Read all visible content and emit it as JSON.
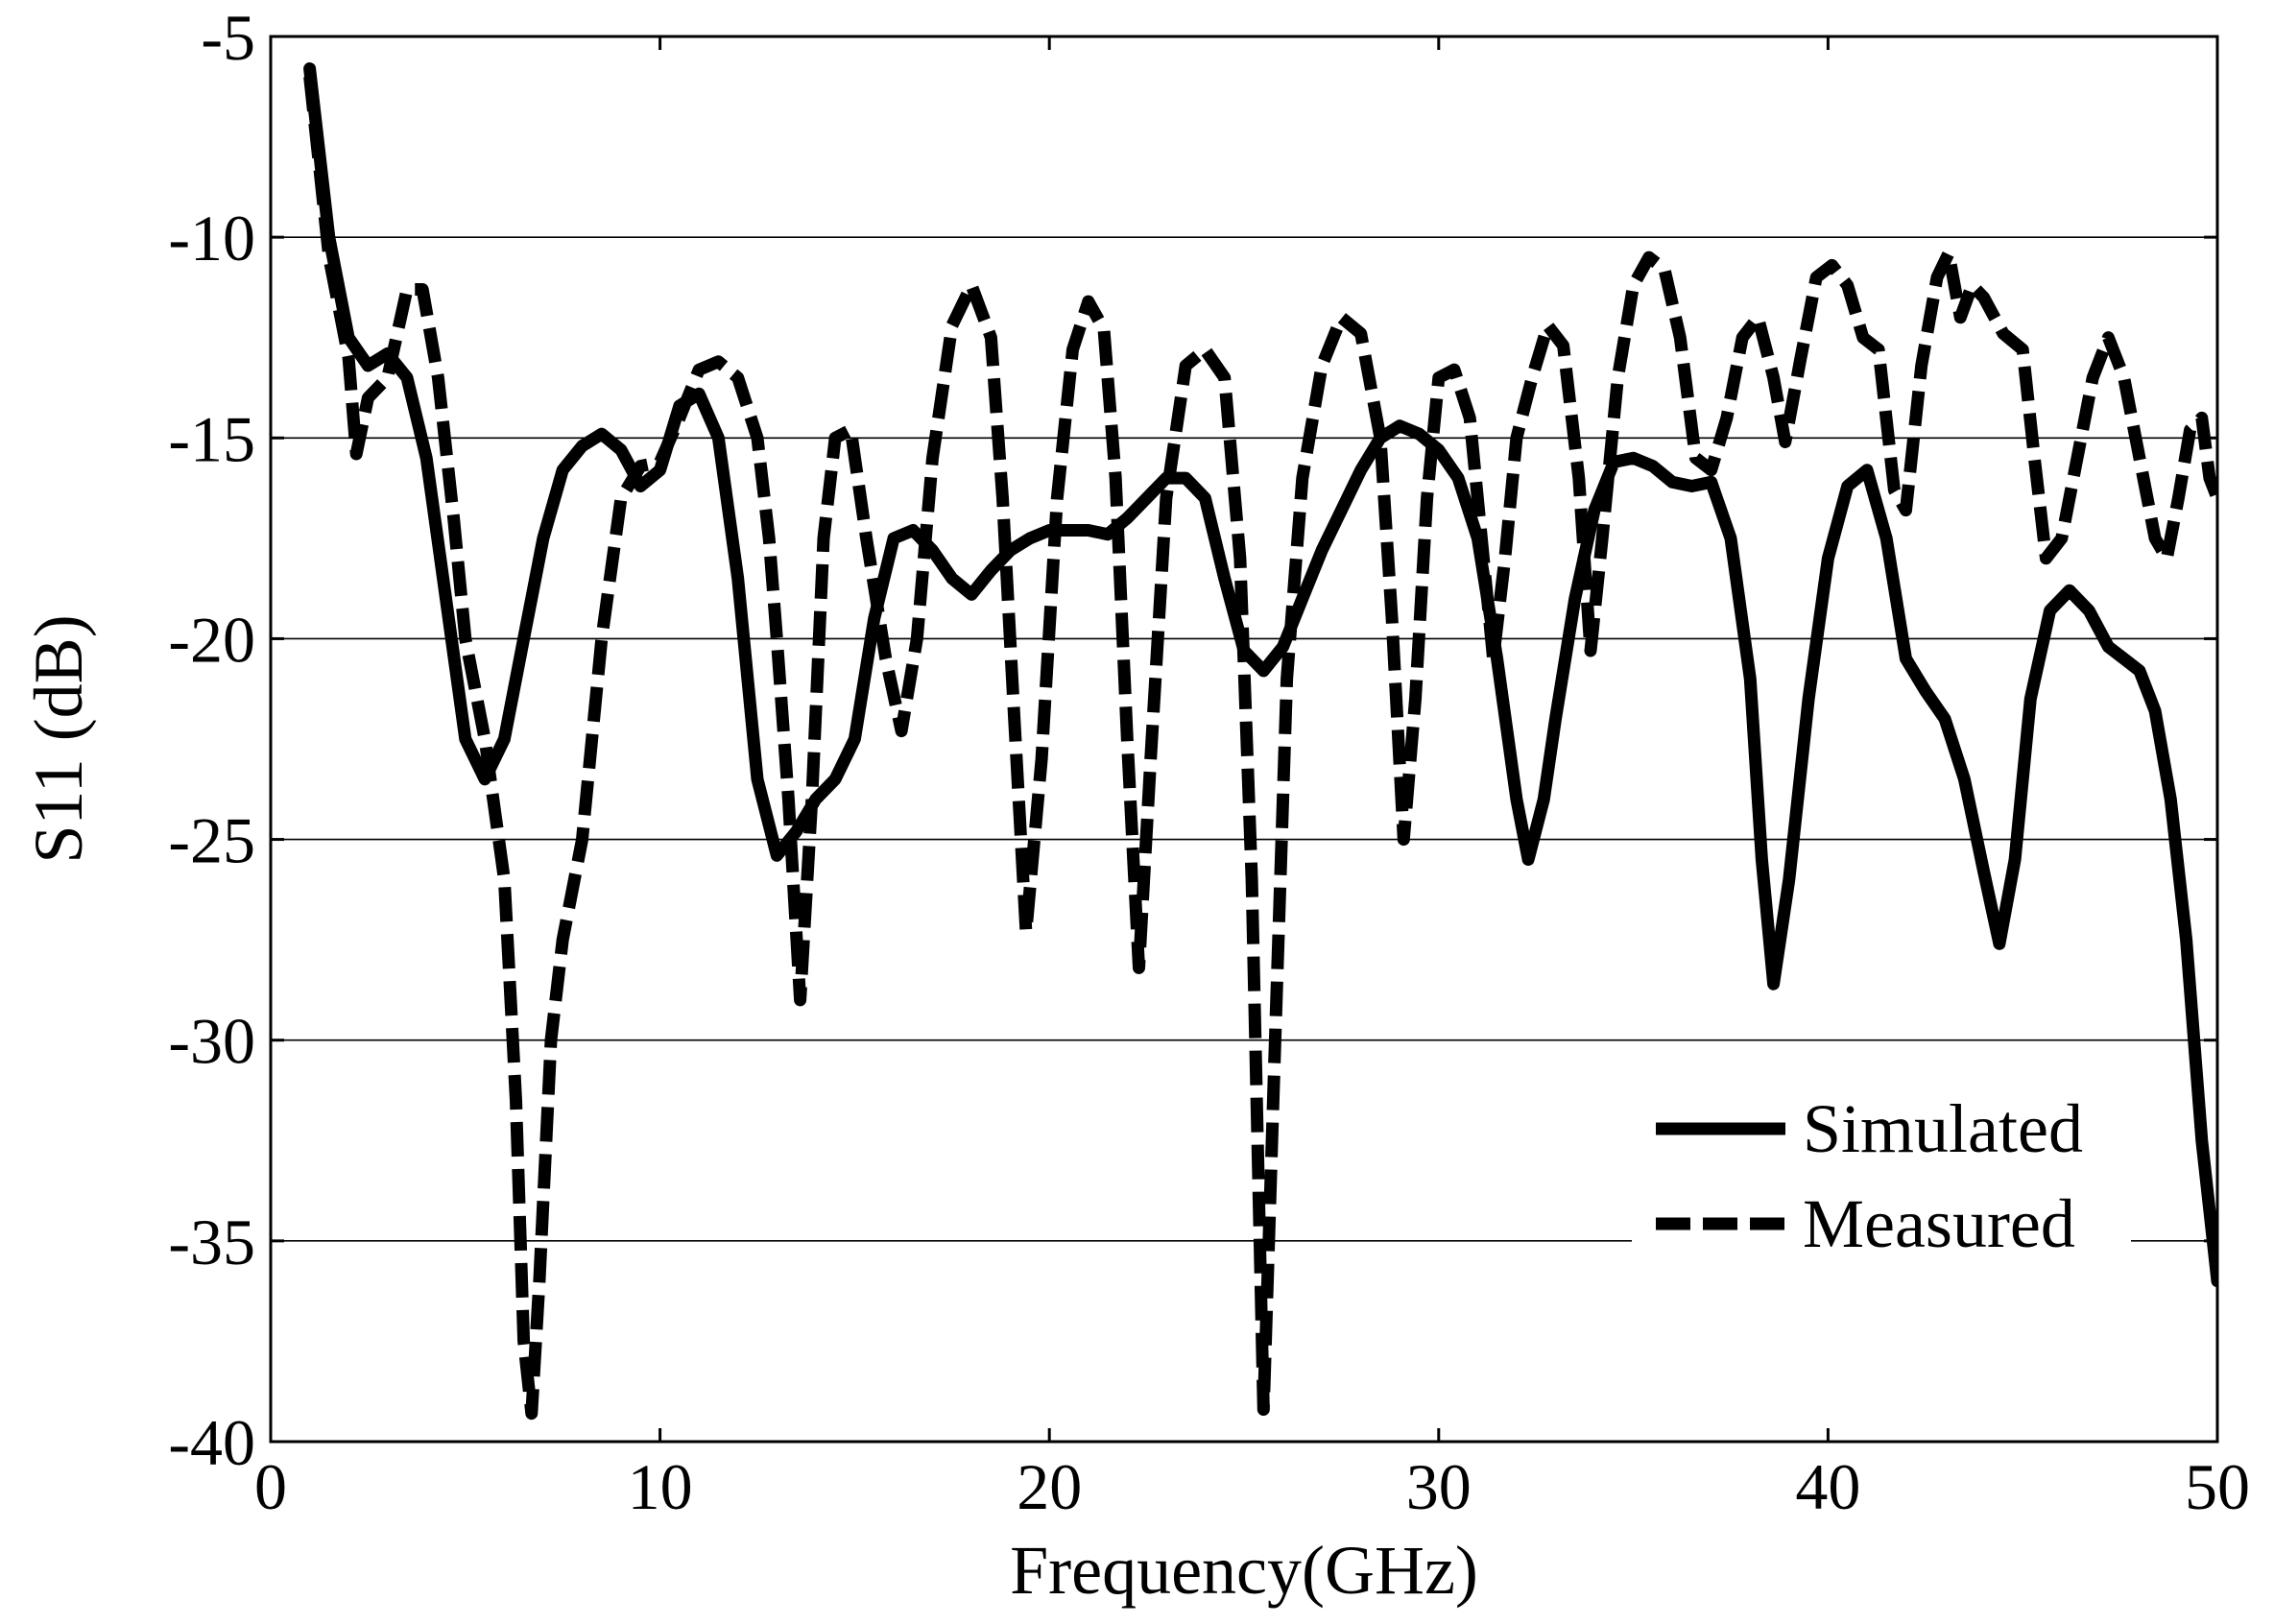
{
  "chart_data": {
    "type": "line",
    "title": "",
    "xlabel": "Frequency(GHz)",
    "ylabel": "S11 (dB)",
    "xlim": [
      0,
      50
    ],
    "ylim": [
      -40,
      -5
    ],
    "xticks": [
      0,
      10,
      20,
      30,
      40,
      50
    ],
    "yticks": [
      -40,
      -35,
      -30,
      -25,
      -20,
      -15,
      -10,
      -5
    ],
    "xtick_labels": [
      "0",
      "10",
      "20",
      "30",
      "40",
      "50"
    ],
    "ytick_labels": [
      "-40",
      "-35",
      "-30",
      "-25",
      "-20",
      "-15",
      "-10",
      "-5"
    ],
    "grid": "horizontal",
    "legend_position": "lower-right",
    "series": [
      {
        "name": "Simulated",
        "style": "solid",
        "color": "#000000",
        "points": [
          [
            1.0,
            -5.8
          ],
          [
            1.5,
            -10.0
          ],
          [
            2.0,
            -12.5
          ],
          [
            2.5,
            -13.2
          ],
          [
            3.0,
            -12.9
          ],
          [
            3.5,
            -13.5
          ],
          [
            4.0,
            -15.5
          ],
          [
            4.5,
            -19.0
          ],
          [
            5.0,
            -22.5
          ],
          [
            5.5,
            -23.5
          ],
          [
            6.0,
            -22.5
          ],
          [
            6.5,
            -20.0
          ],
          [
            7.0,
            -17.5
          ],
          [
            7.5,
            -15.8
          ],
          [
            8.0,
            -15.2
          ],
          [
            8.5,
            -14.9
          ],
          [
            9.0,
            -15.3
          ],
          [
            9.5,
            -16.2
          ],
          [
            10.0,
            -15.8
          ],
          [
            10.5,
            -14.2
          ],
          [
            11.0,
            -13.9
          ],
          [
            11.5,
            -15.0
          ],
          [
            12.0,
            -18.5
          ],
          [
            12.5,
            -23.5
          ],
          [
            13.0,
            -25.4
          ],
          [
            13.5,
            -24.8
          ],
          [
            14.0,
            -24.0
          ],
          [
            14.5,
            -23.5
          ],
          [
            15.0,
            -22.5
          ],
          [
            15.5,
            -19.5
          ],
          [
            16.0,
            -17.5
          ],
          [
            16.5,
            -17.3
          ],
          [
            17.0,
            -17.8
          ],
          [
            17.5,
            -18.5
          ],
          [
            18.0,
            -18.9
          ],
          [
            18.5,
            -18.3
          ],
          [
            19.0,
            -17.8
          ],
          [
            19.5,
            -17.5
          ],
          [
            20.0,
            -17.3
          ],
          [
            21.0,
            -17.3
          ],
          [
            21.5,
            -17.4
          ],
          [
            22.0,
            -17.0
          ],
          [
            22.5,
            -16.5
          ],
          [
            23.0,
            -16.0
          ],
          [
            23.5,
            -16.0
          ],
          [
            24.0,
            -16.5
          ],
          [
            24.5,
            -18.5
          ],
          [
            25.0,
            -20.3
          ],
          [
            25.5,
            -20.8
          ],
          [
            26.0,
            -20.2
          ],
          [
            26.5,
            -19.0
          ],
          [
            27.0,
            -17.8
          ],
          [
            27.5,
            -16.8
          ],
          [
            28.0,
            -15.8
          ],
          [
            28.5,
            -15.0
          ],
          [
            29.0,
            -14.7
          ],
          [
            29.5,
            -14.9
          ],
          [
            30.0,
            -15.3
          ],
          [
            30.5,
            -16.0
          ],
          [
            31.0,
            -17.5
          ],
          [
            31.5,
            -20.5
          ],
          [
            32.0,
            -24.0
          ],
          [
            32.3,
            -25.5
          ],
          [
            32.7,
            -24.0
          ],
          [
            33.0,
            -22.0
          ],
          [
            33.5,
            -19.0
          ],
          [
            34.0,
            -16.8
          ],
          [
            34.5,
            -15.6
          ],
          [
            35.0,
            -15.5
          ],
          [
            35.5,
            -15.7
          ],
          [
            36.0,
            -16.1
          ],
          [
            36.5,
            -16.2
          ],
          [
            37.0,
            -16.1
          ],
          [
            37.5,
            -17.5
          ],
          [
            38.0,
            -21.0
          ],
          [
            38.3,
            -25.5
          ],
          [
            38.6,
            -28.6
          ],
          [
            39.0,
            -26.0
          ],
          [
            39.5,
            -21.5
          ],
          [
            40.0,
            -18.0
          ],
          [
            40.5,
            -16.2
          ],
          [
            41.0,
            -15.8
          ],
          [
            41.5,
            -17.5
          ],
          [
            42.0,
            -20.5
          ],
          [
            42.5,
            -21.3
          ],
          [
            43.0,
            -22.0
          ],
          [
            43.5,
            -23.5
          ],
          [
            44.0,
            -25.8
          ],
          [
            44.4,
            -27.6
          ],
          [
            44.8,
            -25.5
          ],
          [
            45.2,
            -21.5
          ],
          [
            45.7,
            -19.3
          ],
          [
            46.2,
            -18.8
          ],
          [
            46.7,
            -19.3
          ],
          [
            47.2,
            -20.2
          ],
          [
            47.6,
            -20.5
          ],
          [
            48.0,
            -20.8
          ],
          [
            48.4,
            -21.8
          ],
          [
            48.8,
            -24.0
          ],
          [
            49.2,
            -27.5
          ],
          [
            49.6,
            -32.5
          ],
          [
            50.0,
            -36.0
          ]
        ]
      },
      {
        "name": "Measured",
        "style": "dashed",
        "color": "#000000",
        "points": [
          [
            1.0,
            -6.0
          ],
          [
            1.5,
            -10.5
          ],
          [
            2.0,
            -13.0
          ],
          [
            2.2,
            -15.4
          ],
          [
            2.5,
            -14.0
          ],
          [
            3.0,
            -13.5
          ],
          [
            3.5,
            -11.3
          ],
          [
            3.9,
            -11.3
          ],
          [
            4.3,
            -13.5
          ],
          [
            4.7,
            -17.0
          ],
          [
            5.0,
            -20.0
          ],
          [
            5.5,
            -22.5
          ],
          [
            6.0,
            -26.0
          ],
          [
            6.3,
            -31.5
          ],
          [
            6.5,
            -37.5
          ],
          [
            6.7,
            -39.3
          ],
          [
            6.9,
            -36.0
          ],
          [
            7.2,
            -30.0
          ],
          [
            7.5,
            -27.5
          ],
          [
            8.0,
            -25.0
          ],
          [
            8.5,
            -20.0
          ],
          [
            9.0,
            -16.5
          ],
          [
            9.5,
            -15.7
          ],
          [
            10.0,
            -15.6
          ],
          [
            10.5,
            -14.5
          ],
          [
            11.0,
            -13.3
          ],
          [
            11.5,
            -13.1
          ],
          [
            12.0,
            -13.5
          ],
          [
            12.5,
            -15.0
          ],
          [
            12.8,
            -17.5
          ],
          [
            13.0,
            -20.0
          ],
          [
            13.3,
            -24.0
          ],
          [
            13.6,
            -29.0
          ],
          [
            13.9,
            -24.0
          ],
          [
            14.2,
            -17.5
          ],
          [
            14.5,
            -15.0
          ],
          [
            14.9,
            -14.8
          ],
          [
            15.3,
            -17.5
          ],
          [
            15.8,
            -20.5
          ],
          [
            16.2,
            -22.3
          ],
          [
            16.6,
            -20.0
          ],
          [
            17.0,
            -15.5
          ],
          [
            17.5,
            -12.2
          ],
          [
            18.0,
            -11.2
          ],
          [
            18.5,
            -12.5
          ],
          [
            18.8,
            -16.5
          ],
          [
            19.1,
            -22.0
          ],
          [
            19.4,
            -27.3
          ],
          [
            19.8,
            -23.0
          ],
          [
            20.2,
            -16.5
          ],
          [
            20.6,
            -12.8
          ],
          [
            21.0,
            -11.6
          ],
          [
            21.4,
            -12.3
          ],
          [
            21.7,
            -16.0
          ],
          [
            22.0,
            -22.5
          ],
          [
            22.3,
            -28.2
          ],
          [
            22.6,
            -23.0
          ],
          [
            23.0,
            -16.5
          ],
          [
            23.5,
            -13.2
          ],
          [
            24.0,
            -12.8
          ],
          [
            24.5,
            -13.5
          ],
          [
            24.9,
            -18.0
          ],
          [
            25.2,
            -26.0
          ],
          [
            25.5,
            -39.2
          ],
          [
            25.8,
            -30.0
          ],
          [
            26.1,
            -21.0
          ],
          [
            26.5,
            -16.0
          ],
          [
            27.0,
            -13.2
          ],
          [
            27.5,
            -12.0
          ],
          [
            28.0,
            -12.4
          ],
          [
            28.5,
            -15.0
          ],
          [
            28.8,
            -19.5
          ],
          [
            29.1,
            -25.0
          ],
          [
            29.4,
            -21.5
          ],
          [
            29.7,
            -16.5
          ],
          [
            30.0,
            -13.5
          ],
          [
            30.4,
            -13.3
          ],
          [
            30.8,
            -14.5
          ],
          [
            31.1,
            -17.5
          ],
          [
            31.4,
            -20.5
          ],
          [
            31.7,
            -18.0
          ],
          [
            32.0,
            -15.0
          ],
          [
            32.4,
            -13.5
          ],
          [
            32.8,
            -12.2
          ],
          [
            33.2,
            -12.7
          ],
          [
            33.6,
            -16.0
          ],
          [
            33.9,
            -20.3
          ],
          [
            34.2,
            -17.5
          ],
          [
            34.6,
            -13.5
          ],
          [
            35.0,
            -11.2
          ],
          [
            35.4,
            -10.5
          ],
          [
            35.8,
            -10.8
          ],
          [
            36.2,
            -12.5
          ],
          [
            36.6,
            -15.5
          ],
          [
            37.0,
            -15.8
          ],
          [
            37.4,
            -14.5
          ],
          [
            37.8,
            -12.5
          ],
          [
            38.2,
            -12.0
          ],
          [
            38.6,
            -13.5
          ],
          [
            38.9,
            -15.1
          ],
          [
            39.3,
            -13.0
          ],
          [
            39.7,
            -11.0
          ],
          [
            40.1,
            -10.7
          ],
          [
            40.5,
            -11.2
          ],
          [
            40.9,
            -12.5
          ],
          [
            41.3,
            -12.8
          ],
          [
            41.7,
            -16.3
          ],
          [
            42.0,
            -16.8
          ],
          [
            42.4,
            -13.2
          ],
          [
            42.8,
            -11.0
          ],
          [
            43.1,
            -10.4
          ],
          [
            43.4,
            -12.0
          ],
          [
            43.7,
            -11.2
          ],
          [
            44.0,
            -11.5
          ],
          [
            44.5,
            -12.4
          ],
          [
            45.0,
            -12.8
          ],
          [
            45.3,
            -15.5
          ],
          [
            45.6,
            -18.0
          ],
          [
            46.0,
            -17.5
          ],
          [
            46.4,
            -15.5
          ],
          [
            46.8,
            -13.5
          ],
          [
            47.2,
            -12.5
          ],
          [
            47.6,
            -13.5
          ],
          [
            48.0,
            -15.5
          ],
          [
            48.4,
            -17.5
          ],
          [
            48.7,
            -18.0
          ],
          [
            49.0,
            -16.5
          ],
          [
            49.3,
            -14.8
          ],
          [
            49.6,
            -14.5
          ],
          [
            49.8,
            -16.0
          ],
          [
            50.0,
            -16.5
          ]
        ]
      }
    ]
  }
}
